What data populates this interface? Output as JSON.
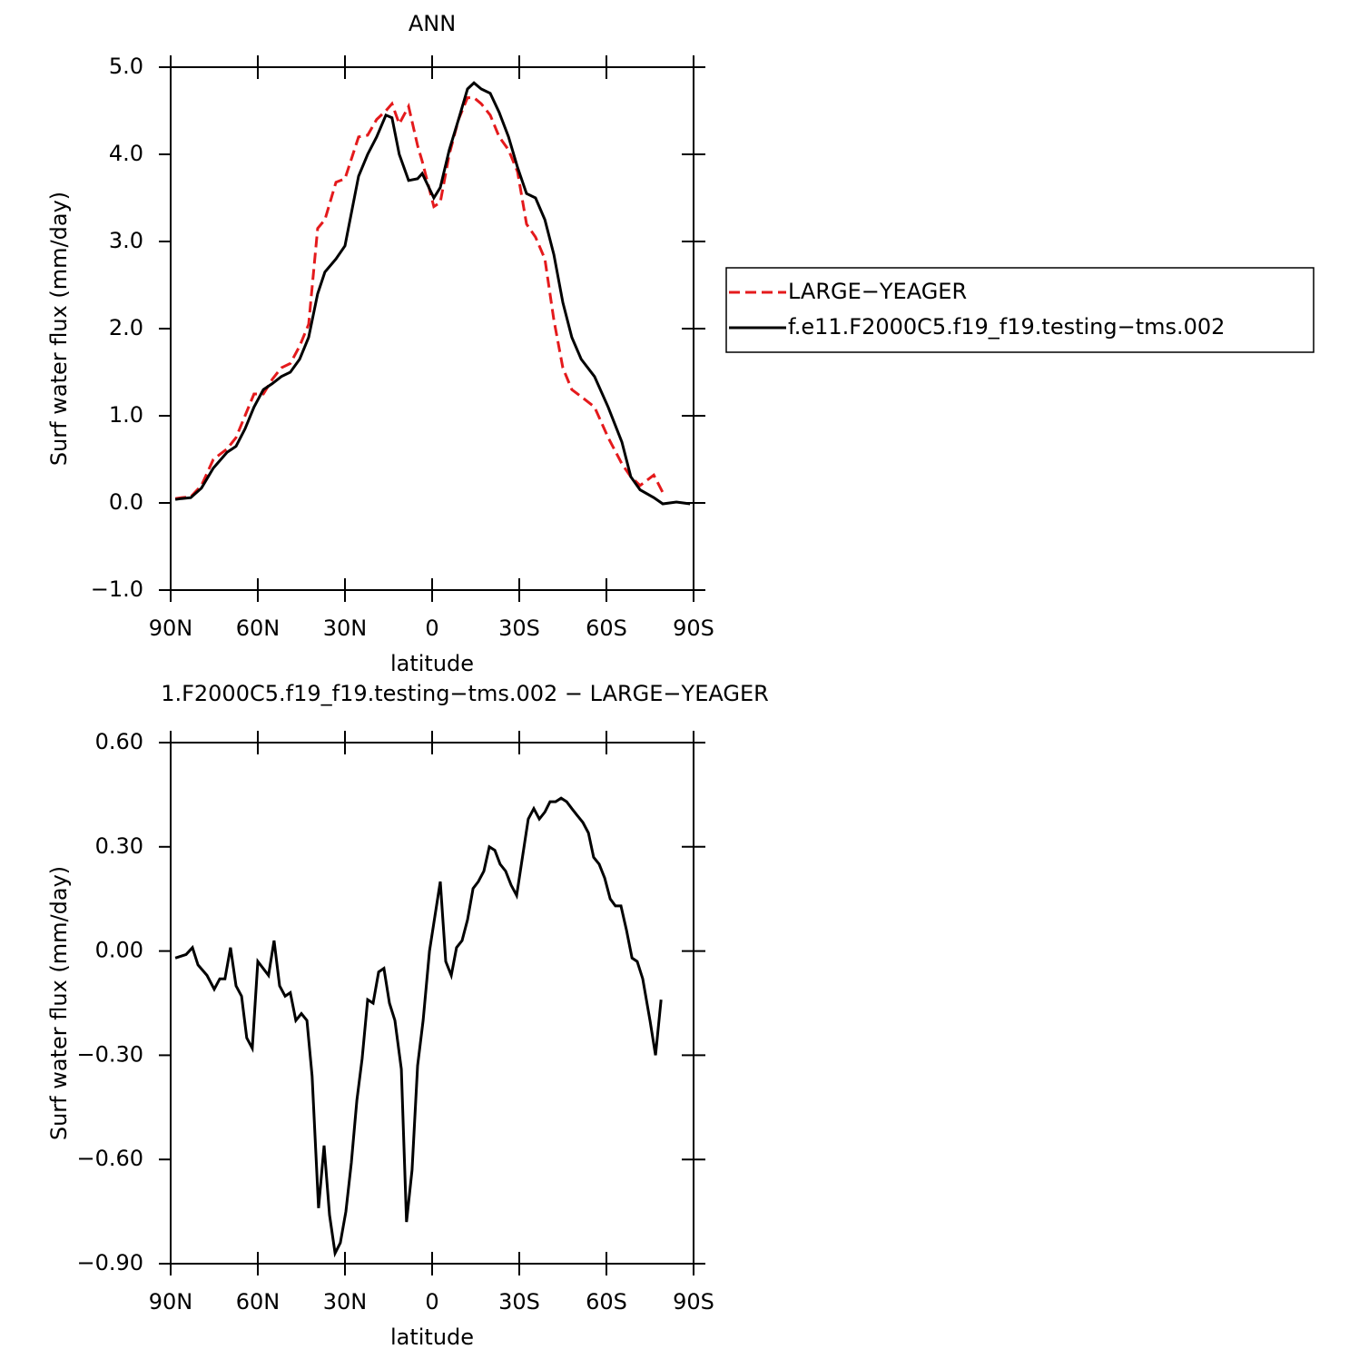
{
  "chart_data": [
    {
      "type": "line",
      "title": "ANN",
      "xlabel": "latitude",
      "ylabel": "Surf water flux (mm/day)",
      "x": [
        88.4,
        86.3,
        83.1,
        79.4,
        75.3,
        70.6,
        67.5,
        64.4,
        61.3,
        58.1,
        55,
        51.9,
        48.8,
        45.6,
        42.5,
        39.4,
        36.9,
        33.1,
        30,
        25.3,
        22.2,
        19.1,
        15.9,
        13.8,
        11.3,
        8.1,
        5,
        3.4,
        -0.6,
        -2.8,
        -5.9,
        -9.1,
        -12.2,
        -14.4,
        -16.9,
        -20,
        -23.1,
        -26.3,
        -29.4,
        -32.5,
        -35.6,
        -38.8,
        -41.9,
        -45,
        -48.1,
        -51.3,
        -55.9,
        -60.6,
        -65.3,
        -68.4,
        -71.6,
        -76.3,
        -79.4,
        -84.1,
        -88.8
      ],
      "series": [
        {
          "name": "LARGE−YEAGER",
          "color": "#e41a1c",
          "dashed": true,
          "values": [
            0.05,
            0.06,
            0.07,
            0.2,
            0.5,
            0.62,
            0.75,
            1.0,
            1.25,
            1.25,
            1.42,
            1.55,
            1.6,
            1.8,
            2.05,
            3.15,
            3.25,
            3.68,
            3.72,
            4.2,
            4.22,
            4.4,
            4.5,
            4.58,
            4.35,
            4.55,
            4.1,
            3.92,
            3.4,
            3.45,
            4.0,
            4.4,
            4.65,
            4.65,
            4.58,
            4.45,
            4.2,
            4.05,
            3.8,
            3.2,
            3.05,
            2.8,
            2.1,
            1.55,
            1.3,
            1.22,
            1.1,
            0.75,
            0.45,
            0.3,
            0.2,
            0.32,
            0.12,
            null,
            null
          ]
        },
        {
          "name": "f.e11.F2000C5.f19_f19.testing−tms.002",
          "color": "#000000",
          "dashed": false,
          "values": [
            0.04,
            0.05,
            0.06,
            0.17,
            0.4,
            0.58,
            0.65,
            0.85,
            1.1,
            1.3,
            1.37,
            1.45,
            1.5,
            1.65,
            1.9,
            2.4,
            2.65,
            2.8,
            2.95,
            3.75,
            4.0,
            4.2,
            4.45,
            4.42,
            4.0,
            3.7,
            3.72,
            3.78,
            3.5,
            3.62,
            4.05,
            4.4,
            4.75,
            4.82,
            4.75,
            4.7,
            4.48,
            4.2,
            3.85,
            3.55,
            3.5,
            3.25,
            2.85,
            2.3,
            1.9,
            1.65,
            1.45,
            1.1,
            0.7,
            0.3,
            0.15,
            0.06,
            -0.01,
            0.01,
            -0.01
          ]
        }
      ],
      "xlim": [
        90,
        -90
      ],
      "xticks": [
        {
          "value": 90,
          "label": "90N"
        },
        {
          "value": 60,
          "label": "60N"
        },
        {
          "value": 30,
          "label": "30N"
        },
        0,
        {
          "value": -30,
          "label": "30S"
        },
        {
          "value": -60,
          "label": "60S"
        },
        {
          "value": -90,
          "label": "90S"
        }
      ],
      "ylim": [
        -1,
        5
      ],
      "yticks": [
        {
          "value": -1,
          "label": "−1.0"
        },
        {
          "value": 0,
          "label": "0.0"
        },
        {
          "value": 1,
          "label": "1.0"
        },
        {
          "value": 2,
          "label": "2.0"
        },
        {
          "value": 3,
          "label": "3.0"
        },
        {
          "value": 4,
          "label": "4.0"
        },
        {
          "value": 5,
          "label": "5.0"
        }
      ],
      "legend": "right"
    },
    {
      "type": "line",
      "title": "1.F2000C5.f19_f19.testing−tms.002 − LARGE−YEAGER",
      "xlabel": "latitude",
      "ylabel": "Surf water flux (mm/day)",
      "x": [
        88.4,
        84.7,
        82.5,
        80.6,
        77.5,
        75,
        73.1,
        71.3,
        69.4,
        67.5,
        65.6,
        63.8,
        61.9,
        60,
        56.3,
        54.4,
        52.5,
        50.6,
        48.8,
        46.9,
        45,
        43.1,
        41.3,
        39.1,
        37.2,
        35.3,
        33.4,
        31.6,
        29.7,
        27.8,
        25.9,
        24.1,
        22.2,
        20.3,
        18.4,
        16.6,
        14.7,
        12.8,
        10.6,
        8.8,
        6.9,
        5,
        3.1,
        0.9,
        -2.8,
        -4.7,
        -6.6,
        -8.4,
        -10.3,
        -12.2,
        -14.1,
        -15.9,
        -17.8,
        -19.7,
        -21.6,
        -23.4,
        -25.3,
        -27.2,
        -29.1,
        -33.1,
        -35,
        -36.9,
        -38.8,
        -40.6,
        -42.5,
        -44.4,
        -46.3,
        -48.1,
        -50,
        -51.9,
        -53.8,
        -55.6,
        -57.5,
        -59.4,
        -61.3,
        -63.1,
        -65,
        -66.9,
        -68.8,
        -70.6,
        -72.5,
        -75,
        -76.9,
        -78.8
      ],
      "series": [
        {
          "color": "#000000",
          "values": [
            -0.02,
            -0.01,
            0.01,
            -0.04,
            -0.07,
            -0.11,
            -0.08,
            -0.08,
            0.01,
            -0.1,
            -0.13,
            -0.25,
            -0.28,
            -0.03,
            -0.07,
            0.03,
            -0.1,
            -0.13,
            -0.12,
            -0.2,
            -0.18,
            -0.2,
            -0.36,
            -0.74,
            -0.56,
            -0.76,
            -0.87,
            -0.84,
            -0.75,
            -0.61,
            -0.43,
            -0.31,
            -0.14,
            -0.15,
            -0.06,
            -0.05,
            -0.15,
            -0.2,
            -0.34,
            -0.78,
            -0.63,
            -0.33,
            -0.2,
            0.0,
            0.2,
            -0.03,
            -0.07,
            0.01,
            0.03,
            0.09,
            0.18,
            0.2,
            0.23,
            0.3,
            0.29,
            0.25,
            0.23,
            0.19,
            0.16,
            0.38,
            0.41,
            0.38,
            0.4,
            0.43,
            0.43,
            0.44,
            0.43,
            0.41,
            0.39,
            0.37,
            0.34,
            0.27,
            0.25,
            0.21,
            0.15,
            0.13,
            0.13,
            0.06,
            -0.02,
            -0.03,
            -0.08,
            -0.2,
            -0.3,
            -0.14
          ]
        }
      ],
      "xlim": [
        90,
        -90
      ],
      "xticks": [
        {
          "value": 90,
          "label": "90N"
        },
        {
          "value": 60,
          "label": "60N"
        },
        {
          "value": 30,
          "label": "30N"
        },
        0,
        {
          "value": -30,
          "label": "30S"
        },
        {
          "value": -60,
          "label": "60S"
        },
        {
          "value": -90,
          "label": "90S"
        }
      ],
      "ylim": [
        -0.9,
        0.6
      ],
      "yticks": [
        {
          "value": -0.9,
          "label": "−0.90"
        },
        {
          "value": -0.6,
          "label": "−0.60"
        },
        {
          "value": -0.3,
          "label": "−0.30"
        },
        {
          "value": 0,
          "label": "0.00"
        },
        {
          "value": 0.3,
          "label": "0.30"
        },
        {
          "value": 0.6,
          "label": "0.60"
        }
      ]
    }
  ]
}
